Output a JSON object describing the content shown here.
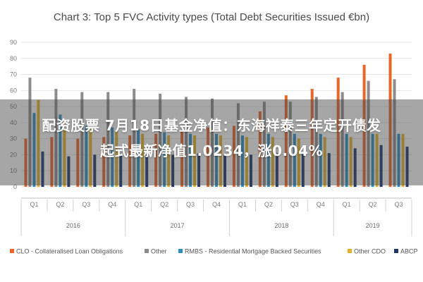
{
  "chart_data": {
    "type": "bar",
    "title": "Chart 3: Top 5 FVC Activity types (Total Debt Securities Issued €bn)",
    "categories": [
      "Q1",
      "Q2",
      "Q3",
      "Q4",
      "Q1",
      "Q2",
      "Q3",
      "Q4",
      "Q1",
      "Q2",
      "Q3",
      "Q4",
      "Q1",
      "Q2",
      "Q3"
    ],
    "years": [
      {
        "label": "2016",
        "start": 0,
        "count": 4
      },
      {
        "label": "2017",
        "start": 4,
        "count": 4
      },
      {
        "label": "2018",
        "start": 8,
        "count": 4
      },
      {
        "label": "2019",
        "start": 12,
        "count": 3
      }
    ],
    "series": [
      {
        "name": "CLO - Collateralised Loan Obligations",
        "color": "#e8662a",
        "values": [
          30,
          31,
          30,
          31,
          32,
          33,
          35,
          37,
          38,
          47,
          57,
          61,
          68,
          76,
          83
        ]
      },
      {
        "name": "Other",
        "color": "#8c8c8c",
        "values": [
          68,
          61,
          59,
          59,
          61,
          58,
          56,
          55,
          52,
          53,
          53,
          56,
          59,
          66,
          67
        ]
      },
      {
        "name": "RMBS - Residential Mortgage Backed Securities",
        "color": "#2e8fc2",
        "values": [
          46,
          45,
          38,
          37,
          36,
          34,
          33,
          33,
          32,
          33,
          33,
          33,
          33,
          33,
          33
        ]
      },
      {
        "name": "Other CDO",
        "color": "#e4b22a",
        "values": [
          54,
          36,
          36,
          35,
          33,
          32,
          32,
          32,
          31,
          31,
          30,
          31,
          31,
          33,
          33
        ]
      },
      {
        "name": "ABCP",
        "color": "#20366b",
        "values": [
          22,
          19,
          20,
          20,
          20,
          20,
          21,
          20,
          20,
          21,
          21,
          21,
          24,
          26,
          25
        ]
      }
    ],
    "ylim": [
      0,
      90
    ],
    "yticks": [
      0,
      10,
      20,
      30,
      40,
      50,
      60,
      70,
      80,
      90
    ],
    "grid": true,
    "legend": "bottom",
    "xlabel": "",
    "ylabel": ""
  },
  "overlay": {
    "line1": "配资股票 7月18日基金净值：东海祥泰三年定开债发",
    "line2": "起式最新净值1.0234，涨0.04%"
  }
}
